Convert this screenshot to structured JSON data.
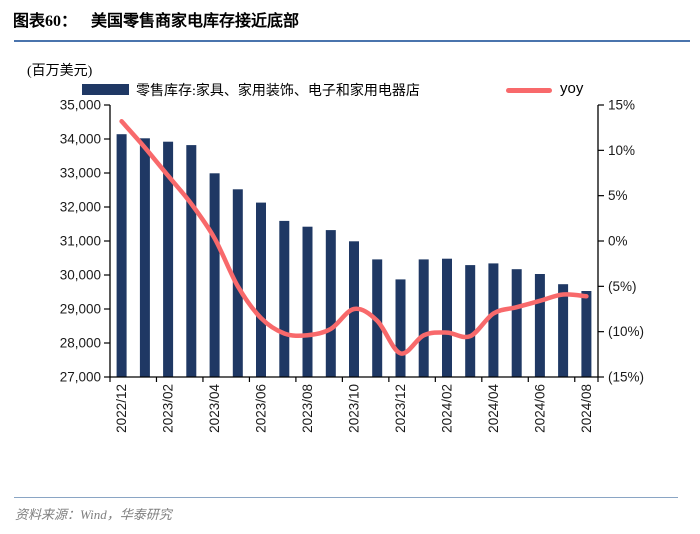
{
  "page": {
    "figure_label": "图表60：",
    "title": "美国零售商家电库存接近底部",
    "unit_label": "(百万美元)",
    "source": "资料来源：Wind，华泰研究"
  },
  "legend": {
    "bar_label": "零售库存:家具、家用装饰、电子和家用电器店",
    "line_label": "yoy"
  },
  "colors": {
    "bar": "#1f3864",
    "line": "#f8696b",
    "axis": "#000000",
    "axis_text": "#1a1a1a",
    "title_rule": "#4a74ad",
    "footer_rule": "#8aa5c4",
    "footer_text": "#808080"
  },
  "chart_data": {
    "type": "combo",
    "title": "美国零售商家电库存接近底部",
    "x": [
      "2022/12",
      "2023/01",
      "2023/02",
      "2023/03",
      "2023/04",
      "2023/05",
      "2023/06",
      "2023/07",
      "2023/08",
      "2023/09",
      "2023/10",
      "2023/11",
      "2023/12",
      "2024/01",
      "2024/02",
      "2024/03",
      "2024/04",
      "2024/05",
      "2024/06",
      "2024/07",
      "2024/08"
    ],
    "x_tick_label_every": 2,
    "series": [
      {
        "name": "零售库存:家具、家用装饰、电子和家用电器店",
        "type": "bar",
        "axis": "left",
        "values": [
          34140,
          34020,
          33920,
          33820,
          32990,
          32520,
          32130,
          31590,
          31420,
          31320,
          30990,
          30460,
          29870,
          30460,
          30480,
          30290,
          30340,
          30170,
          30030,
          29730,
          29530
        ]
      },
      {
        "name": "yoy",
        "type": "line",
        "axis": "right",
        "values": [
          13.2,
          10.3,
          7.2,
          4.1,
          0.3,
          -5.0,
          -8.5,
          -10.2,
          -10.4,
          -9.7,
          -7.5,
          -8.8,
          -12.4,
          -10.4,
          -10.1,
          -10.5,
          -8.0,
          -7.3,
          -6.6,
          -5.9,
          -6.1
        ]
      }
    ],
    "left_axis": {
      "label": "(百万美元)",
      "min": 27000,
      "max": 35000,
      "tick_step": 1000,
      "tick_labels": [
        "35,000",
        "34,000",
        "33,000",
        "32,000",
        "31,000",
        "30,000",
        "29,000",
        "28,000",
        "27,000"
      ]
    },
    "right_axis": {
      "min": -15,
      "max": 15,
      "tick_step": 5,
      "tick_labels": [
        "15%",
        "10%",
        "5%",
        "0%",
        "(5%)",
        "(10%)",
        "(15%)"
      ]
    },
    "grid": false,
    "legend_position": "top"
  }
}
